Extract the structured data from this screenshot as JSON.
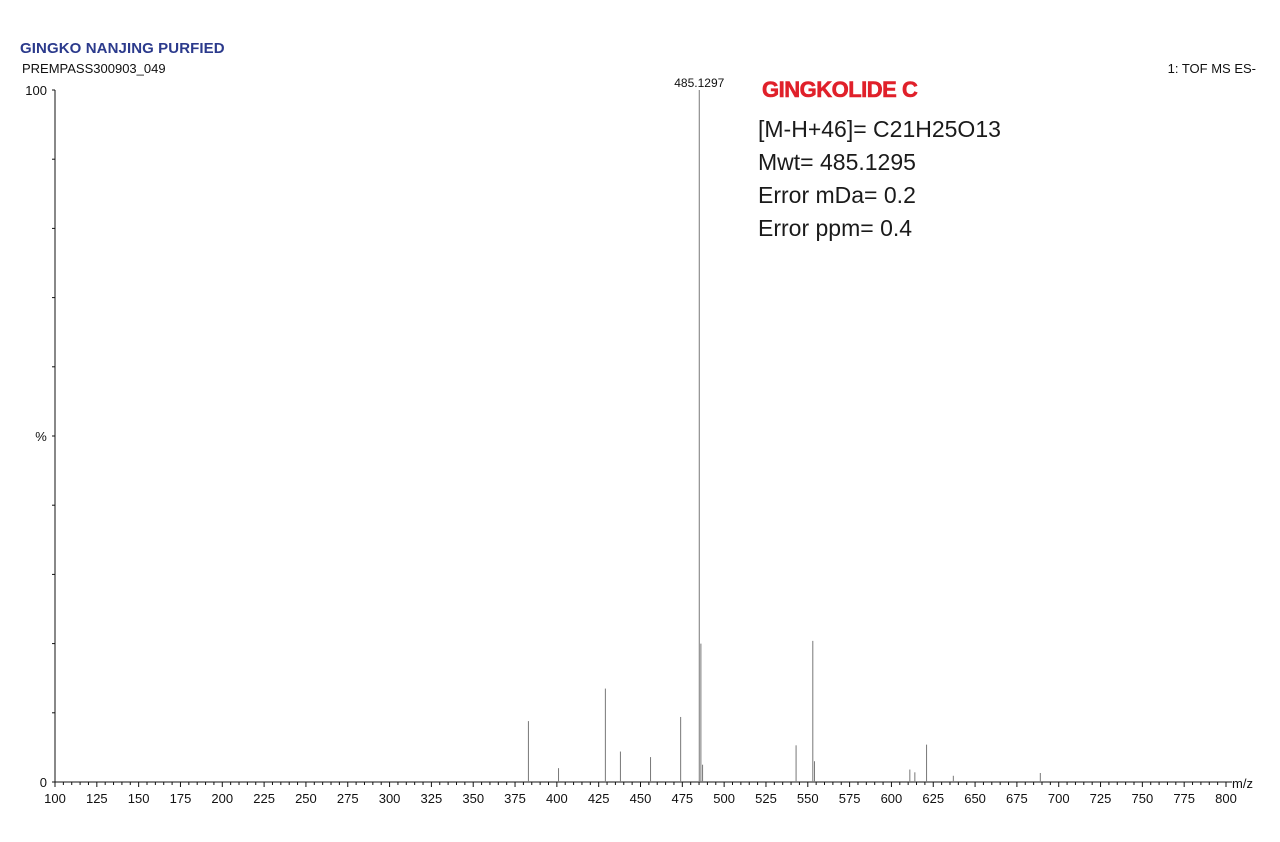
{
  "header": {
    "title": "GINGKO NANJING PURFIED",
    "subtitle": "PREMPASS300903_049",
    "mode": "1: TOF MS ES-"
  },
  "annotation": {
    "compound": "GINGKOLIDE C",
    "lines": [
      "[M-H+46]= C21H25O13",
      "Mwt= 485.1295",
      "Error mDa= 0.2",
      "Error ppm= 0.4"
    ]
  },
  "colors": {
    "title": "#2b3a8c",
    "compound": "#e0202a",
    "peak": "#777777",
    "axis": "#111111"
  },
  "chart_data": {
    "type": "bar",
    "title": "GINGKO NANJING PURFIED",
    "xlabel": "m/z",
    "ylabel": "%",
    "xlim": [
      100,
      800
    ],
    "ylim": [
      0,
      100
    ],
    "x_ticks": [
      100,
      125,
      150,
      175,
      200,
      225,
      250,
      275,
      300,
      325,
      350,
      375,
      400,
      425,
      450,
      475,
      500,
      525,
      550,
      575,
      600,
      625,
      650,
      675,
      700,
      725,
      750,
      775,
      800
    ],
    "y_ticks": [
      0,
      100
    ],
    "grid": false,
    "base_peak_label": "485.1297",
    "peaks": [
      {
        "mz": 383.0,
        "intensity": 8.8
      },
      {
        "mz": 401.0,
        "intensity": 2.0
      },
      {
        "mz": 429.0,
        "intensity": 13.5
      },
      {
        "mz": 438.0,
        "intensity": 4.4
      },
      {
        "mz": 456.0,
        "intensity": 3.6
      },
      {
        "mz": 474.0,
        "intensity": 9.4
      },
      {
        "mz": 485.1297,
        "intensity": 100
      },
      {
        "mz": 486.1,
        "intensity": 20.0
      },
      {
        "mz": 487.1,
        "intensity": 2.5
      },
      {
        "mz": 543.0,
        "intensity": 5.3
      },
      {
        "mz": 553.0,
        "intensity": 20.4
      },
      {
        "mz": 554.0,
        "intensity": 3.0
      },
      {
        "mz": 611.0,
        "intensity": 1.8
      },
      {
        "mz": 614.0,
        "intensity": 1.4
      },
      {
        "mz": 621.0,
        "intensity": 5.4
      },
      {
        "mz": 637.0,
        "intensity": 0.9
      },
      {
        "mz": 689.0,
        "intensity": 1.3
      }
    ]
  }
}
